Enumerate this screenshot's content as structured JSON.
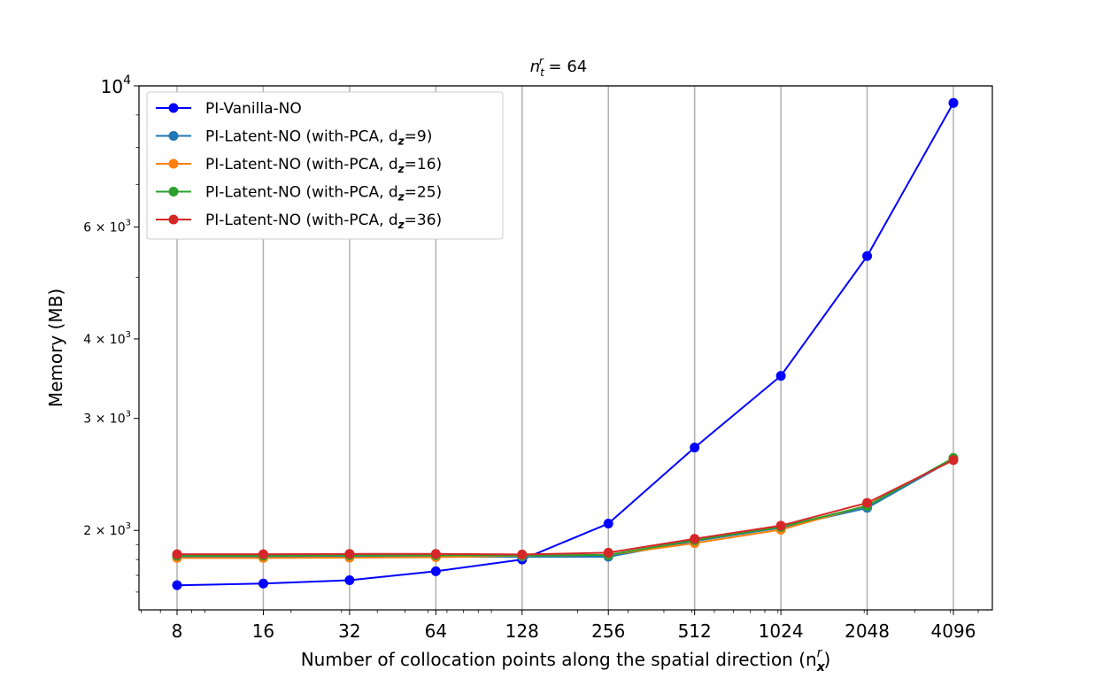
{
  "chart_data": {
    "type": "line",
    "title": "n_t^r = 64",
    "title_parts": {
      "base": "n",
      "sub": "t",
      "sup": "r",
      "rest": " = 64"
    },
    "xlabel": "Number of collocation points along the spatial direction (n",
    "xlabel_sub": "x",
    "xlabel_sup": "r",
    "xlabel_close": ")",
    "ylabel": "Memory (MB)",
    "x_scale": "log2",
    "y_scale": "log",
    "x": [
      8,
      16,
      32,
      64,
      128,
      256,
      512,
      1024,
      2048,
      4096
    ],
    "x_tick_labels": [
      "8",
      "16",
      "32",
      "64",
      "128",
      "256",
      "512",
      "1024",
      "2048",
      "4096"
    ],
    "ylim": [
      1500,
      10000
    ],
    "y_ticks": [
      {
        "value": 2000,
        "mant": "2 × 10",
        "exp": "3"
      },
      {
        "value": 3000,
        "mant": "3 × 10",
        "exp": "3"
      },
      {
        "value": 4000,
        "mant": "4 × 10",
        "exp": "3"
      },
      {
        "value": 6000,
        "mant": "6 × 10",
        "exp": "3"
      },
      {
        "value": 10000,
        "mant": "10",
        "exp": "4"
      }
    ],
    "grid": "vertical",
    "legend_position": "top-left",
    "series": [
      {
        "name": "PI-Vanilla-NO",
        "color": "#0000ff",
        "values": [
          1640,
          1650,
          1670,
          1725,
          1800,
          2050,
          2700,
          3500,
          5400,
          9400
        ]
      },
      {
        "name": "PI-Latent-NO (with-PCA, d",
        "dz": "9",
        "color": "#1f77b4",
        "values": [
          1815,
          1815,
          1818,
          1818,
          1818,
          1818,
          1925,
          2020,
          2170,
          2590
        ]
      },
      {
        "name": "PI-Latent-NO (with-PCA, d",
        "dz": "16",
        "color": "#ff7f0e",
        "values": [
          1810,
          1810,
          1812,
          1815,
          1825,
          1830,
          1910,
          2005,
          2190,
          2595
        ]
      },
      {
        "name": "PI-Latent-NO (with-PCA, d",
        "dz": "25",
        "color": "#2ca02c",
        "values": [
          1825,
          1825,
          1828,
          1828,
          1826,
          1830,
          1930,
          2025,
          2185,
          2600
        ]
      },
      {
        "name": "PI-Latent-NO (with-PCA, d",
        "dz": "36",
        "color": "#d62728",
        "values": [
          1835,
          1835,
          1837,
          1837,
          1833,
          1845,
          1940,
          2035,
          2210,
          2580
        ]
      }
    ]
  }
}
